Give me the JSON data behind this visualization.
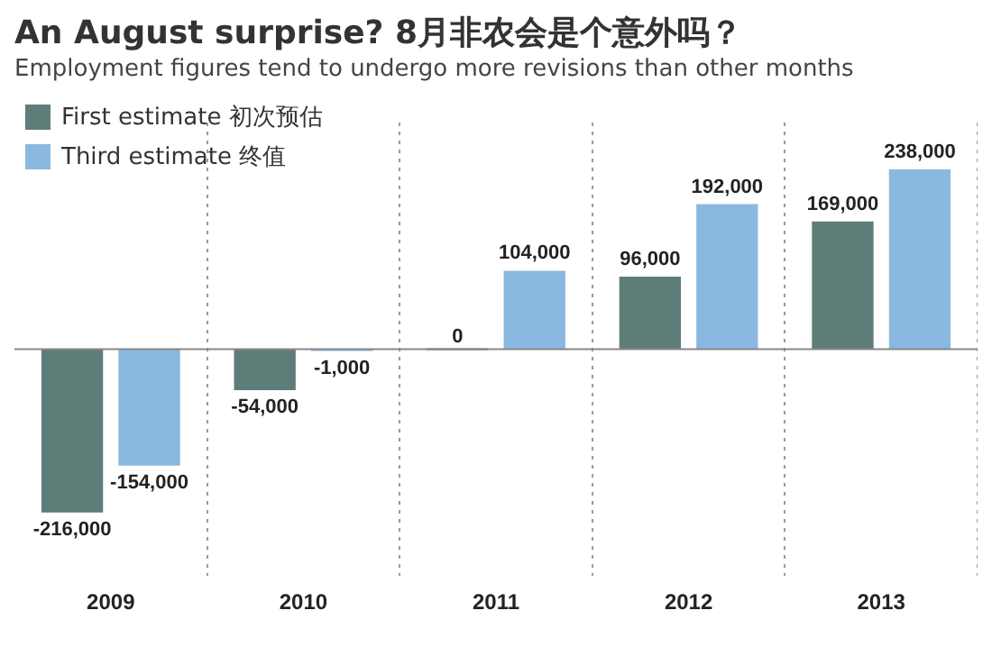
{
  "chart_data": {
    "type": "bar",
    "title": "An August surprise? 8月非农会是个意外吗？",
    "subtitle": "Employment figures tend to undergo more revisions than other months",
    "categories": [
      "2009",
      "2010",
      "2011",
      "2012",
      "2013"
    ],
    "series": [
      {
        "name": "First estimate 初次预估",
        "color": "#5f7d78",
        "values": [
          -216000,
          -54000,
          0,
          96000,
          169000
        ],
        "value_labels": [
          "-216,000",
          "-54,000",
          "0",
          "96,000",
          "169,000"
        ]
      },
      {
        "name": "Third estimate 终值",
        "color": "#8ab8e0",
        "values": [
          -154000,
          -1000,
          104000,
          192000,
          238000
        ],
        "value_labels": [
          "-154,000",
          "-1,000",
          "104,000",
          "192,000",
          "238,000"
        ]
      }
    ],
    "legend": "top left",
    "grid": "x"
  }
}
